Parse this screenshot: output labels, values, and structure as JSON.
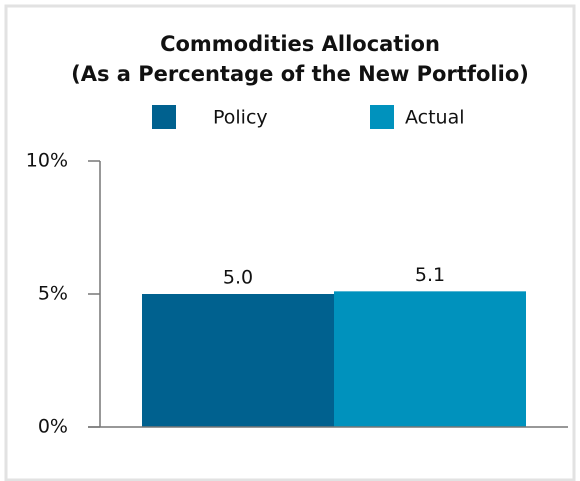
{
  "chart_data": {
    "type": "bar",
    "title": "Commodities Allocation",
    "subtitle": "(As a Percentage of the New Portfolio)",
    "categories": [
      null
    ],
    "series": [
      {
        "name": "Policy",
        "color": "#00618f",
        "values": [
          5.0
        ],
        "value_labels": [
          "5.0"
        ]
      },
      {
        "name": "Actual",
        "color": "#0092bd",
        "values": [
          5.1
        ],
        "value_labels": [
          "5.1"
        ]
      }
    ],
    "ylim": [
      0,
      10
    ],
    "yticks": [
      {
        "value": 0,
        "label": "0%"
      },
      {
        "value": 5,
        "label": "5%"
      },
      {
        "value": 10,
        "label": "10%"
      }
    ],
    "grid": false,
    "legend": "top"
  }
}
